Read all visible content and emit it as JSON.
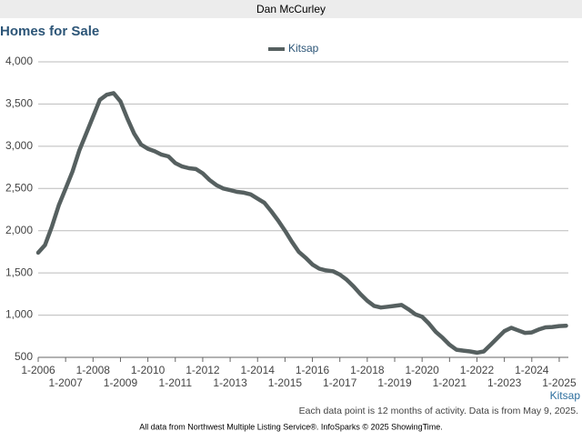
{
  "header": "Dan McCurley",
  "chart_data": {
    "type": "line",
    "title": "Homes for Sale",
    "x": [
      "2006-01",
      "2006-04",
      "2006-07",
      "2006-10",
      "2007-01",
      "2007-04",
      "2007-07",
      "2007-10",
      "2008-01",
      "2008-04",
      "2008-07",
      "2008-10",
      "2009-01",
      "2009-04",
      "2009-07",
      "2009-10",
      "2010-01",
      "2010-04",
      "2010-07",
      "2010-10",
      "2011-01",
      "2011-04",
      "2011-07",
      "2011-10",
      "2012-01",
      "2012-04",
      "2012-07",
      "2012-10",
      "2013-01",
      "2013-04",
      "2013-07",
      "2013-10",
      "2014-01",
      "2014-04",
      "2014-07",
      "2014-10",
      "2015-01",
      "2015-04",
      "2015-07",
      "2015-10",
      "2016-01",
      "2016-04",
      "2016-07",
      "2016-10",
      "2017-01",
      "2017-04",
      "2017-07",
      "2017-10",
      "2018-01",
      "2018-04",
      "2018-07",
      "2018-10",
      "2019-01",
      "2019-04",
      "2019-07",
      "2019-10",
      "2020-01",
      "2020-04",
      "2020-07",
      "2020-10",
      "2021-01",
      "2021-04",
      "2021-07",
      "2021-10",
      "2022-01",
      "2022-04",
      "2022-07",
      "2022-10",
      "2023-01",
      "2023-04",
      "2023-07",
      "2023-10",
      "2024-01",
      "2024-04",
      "2024-07",
      "2024-10",
      "2025-01",
      "2025-04"
    ],
    "series": [
      {
        "name": "Kitsap",
        "color": "#566060",
        "values": [
          1740,
          1830,
          2050,
          2300,
          2500,
          2700,
          2950,
          3150,
          3350,
          3550,
          3610,
          3630,
          3530,
          3330,
          3150,
          3020,
          2970,
          2940,
          2900,
          2880,
          2800,
          2760,
          2740,
          2730,
          2680,
          2600,
          2540,
          2500,
          2480,
          2460,
          2450,
          2430,
          2380,
          2330,
          2230,
          2120,
          2000,
          1870,
          1750,
          1680,
          1600,
          1550,
          1530,
          1520,
          1480,
          1420,
          1340,
          1250,
          1170,
          1110,
          1090,
          1100,
          1110,
          1120,
          1070,
          1010,
          980,
          900,
          800,
          730,
          650,
          590,
          580,
          570,
          555,
          570,
          650,
          730,
          810,
          850,
          820,
          790,
          795,
          830,
          855,
          860,
          870,
          875
        ]
      }
    ],
    "xlim": [
      "2006-01",
      "2025-05"
    ],
    "xticks": [
      {
        "value": "2006-01",
        "label": "1-2006"
      },
      {
        "value": "2007-01",
        "label": "1-2007"
      },
      {
        "value": "2008-01",
        "label": "1-2008"
      },
      {
        "value": "2009-01",
        "label": "1-2009"
      },
      {
        "value": "2010-01",
        "label": "1-2010"
      },
      {
        "value": "2011-01",
        "label": "1-2011"
      },
      {
        "value": "2012-01",
        "label": "1-2012"
      },
      {
        "value": "2013-01",
        "label": "1-2013"
      },
      {
        "value": "2014-01",
        "label": "1-2014"
      },
      {
        "value": "2015-01",
        "label": "1-2015"
      },
      {
        "value": "2016-01",
        "label": "1-2016"
      },
      {
        "value": "2017-01",
        "label": "1-2017"
      },
      {
        "value": "2018-01",
        "label": "1-2018"
      },
      {
        "value": "2019-01",
        "label": "1-2019"
      },
      {
        "value": "2020-01",
        "label": "1-2020"
      },
      {
        "value": "2021-01",
        "label": "1-2021"
      },
      {
        "value": "2022-01",
        "label": "1-2022"
      },
      {
        "value": "2023-01",
        "label": "1-2023"
      },
      {
        "value": "2024-01",
        "label": "1-2024"
      },
      {
        "value": "2025-01",
        "label": "1-2025"
      }
    ],
    "ylim": [
      500,
      4000
    ],
    "yticks": [
      500,
      {
        "value": 1000,
        "label": "1,000"
      },
      {
        "value": 1500,
        "label": "1,500"
      },
      {
        "value": 2000,
        "label": "2,000"
      },
      {
        "value": 2500,
        "label": "2,500"
      },
      {
        "value": 3000,
        "label": "3,000"
      },
      {
        "value": 3500,
        "label": "3,500"
      },
      {
        "value": 4000,
        "label": "4,000"
      }
    ],
    "grid": true,
    "corner_label": "Kitsap",
    "note": "Each data point is 12 months of activity. Data is from May 9, 2025.",
    "source": "All data from Northwest Multiple Listing Service®. InfoSparks © 2025 ShowingTime."
  }
}
